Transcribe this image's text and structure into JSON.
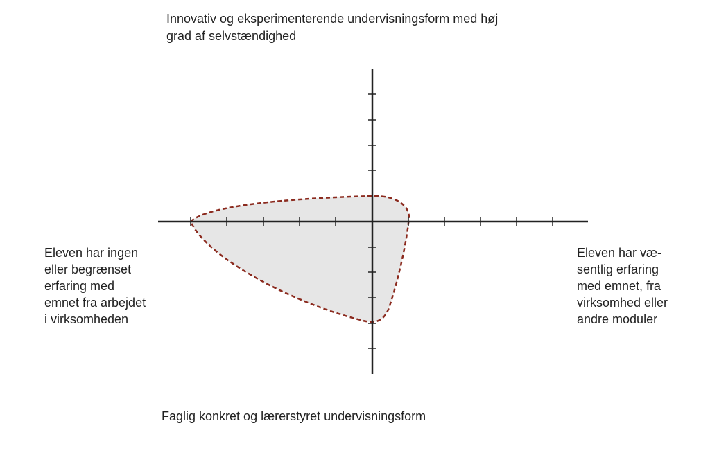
{
  "top_label": {
    "lines": [
      "Innovativ og eksperimenterende undervisningsform med høj",
      "grad af selvstændighed"
    ]
  },
  "bottom_label": {
    "lines": [
      "Faglig konkret og lærerstyret undervisningsform"
    ]
  },
  "left_label": {
    "lines": [
      "Eleven har ingen",
      "eller begrænset",
      "erfaring med",
      "emnet fra arbejdet",
      "i virksomheden"
    ]
  },
  "right_label": {
    "lines": [
      "Eleven har væ-",
      "sentlig erfaring",
      "med emnet, fra",
      "virksomhed eller",
      "andre moduler"
    ]
  }
}
